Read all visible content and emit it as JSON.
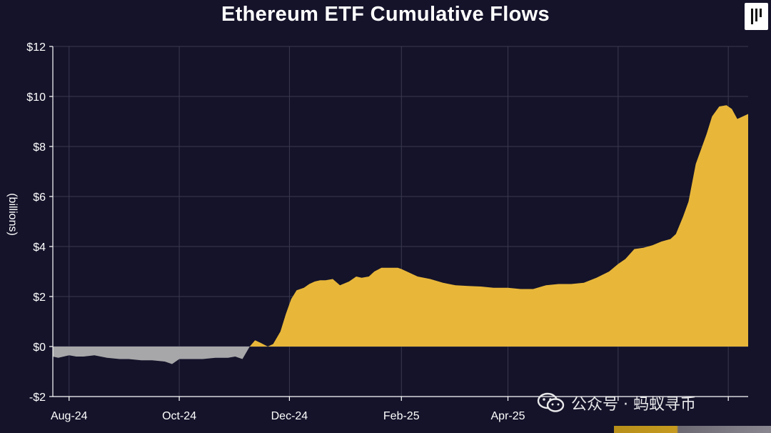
{
  "chart_data": {
    "type": "area",
    "title": "Ethereum ETF Cumulative Flows",
    "ylabel": "(billions)",
    "xlabel": "",
    "ylim": [
      -2,
      12
    ],
    "yticks": [
      -2,
      0,
      2,
      4,
      6,
      8,
      10,
      12
    ],
    "ytick_labels": [
      "-$2",
      "$0",
      "$2",
      "$4",
      "$6",
      "$8",
      "$10",
      "$12"
    ],
    "xlim": [
      "2024-07-23",
      "2025-08-12"
    ],
    "xticks": [
      "2024-08-01",
      "2024-10-01",
      "2024-12-01",
      "2025-02-01",
      "2025-04-01",
      "2025-06-01",
      "2025-08-01"
    ],
    "xtick_labels": [
      "Aug-24",
      "Oct-24",
      "Dec-24",
      "Feb-25",
      "Apr-25",
      "",
      ""
    ],
    "grid": true,
    "colors": {
      "positive": "#e8b73a",
      "negative": "#a7a7a9"
    },
    "series": [
      {
        "x": [
          "2024-07-23",
          "2024-07-26",
          "2024-08-01",
          "2024-08-05",
          "2024-08-09",
          "2024-08-15",
          "2024-08-22",
          "2024-08-29",
          "2024-09-03",
          "2024-09-10",
          "2024-09-16",
          "2024-09-23",
          "2024-09-27",
          "2024-10-01",
          "2024-10-08",
          "2024-10-14",
          "2024-10-21",
          "2024-10-28",
          "2024-11-01",
          "2024-11-05",
          "2024-11-09",
          "2024-11-12",
          "2024-11-15",
          "2024-11-19",
          "2024-11-22",
          "2024-11-26",
          "2024-11-29",
          "2024-12-02",
          "2024-12-05",
          "2024-12-09",
          "2024-12-12",
          "2024-12-15",
          "2024-12-18",
          "2024-12-21",
          "2024-12-25",
          "2024-12-29",
          "2025-01-03",
          "2025-01-07",
          "2025-01-10",
          "2025-01-14",
          "2025-01-17",
          "2025-01-21",
          "2025-01-25",
          "2025-01-30",
          "2025-02-01",
          "2025-02-04",
          "2025-02-10",
          "2025-02-17",
          "2025-02-24",
          "2025-03-03",
          "2025-03-10",
          "2025-03-17",
          "2025-03-24",
          "2025-04-01",
          "2025-04-08",
          "2025-04-15",
          "2025-04-22",
          "2025-04-29",
          "2025-05-06",
          "2025-05-13",
          "2025-05-20",
          "2025-05-27",
          "2025-06-01",
          "2025-06-05",
          "2025-06-10",
          "2025-06-15",
          "2025-06-20",
          "2025-06-25",
          "2025-06-30",
          "2025-07-03",
          "2025-07-07",
          "2025-07-10",
          "2025-07-14",
          "2025-07-17",
          "2025-07-20",
          "2025-07-23",
          "2025-07-27",
          "2025-07-31",
          "2025-08-03",
          "2025-08-06",
          "2025-08-09",
          "2025-08-12"
        ],
        "values": [
          -0.4,
          -0.45,
          -0.35,
          -0.4,
          -0.4,
          -0.35,
          -0.45,
          -0.5,
          -0.5,
          -0.55,
          -0.55,
          -0.6,
          -0.7,
          -0.5,
          -0.5,
          -0.5,
          -0.45,
          -0.45,
          -0.4,
          -0.5,
          0.0,
          0.25,
          0.15,
          0.0,
          0.1,
          0.6,
          1.3,
          1.9,
          2.25,
          2.35,
          2.5,
          2.6,
          2.65,
          2.65,
          2.7,
          2.45,
          2.6,
          2.8,
          2.75,
          2.8,
          3.0,
          3.15,
          3.15,
          3.15,
          3.1,
          3.0,
          2.8,
          2.7,
          2.55,
          2.45,
          2.42,
          2.4,
          2.35,
          2.35,
          2.3,
          2.3,
          2.45,
          2.5,
          2.5,
          2.55,
          2.75,
          3.0,
          3.3,
          3.5,
          3.9,
          3.95,
          4.05,
          4.2,
          4.3,
          4.5,
          5.2,
          5.8,
          7.3,
          7.9,
          8.5,
          9.2,
          9.6,
          9.65,
          9.5,
          9.1,
          9.2,
          9.3
        ]
      }
    ]
  },
  "watermark": {
    "text": "公众号 · 蚂蚁寻币"
  }
}
